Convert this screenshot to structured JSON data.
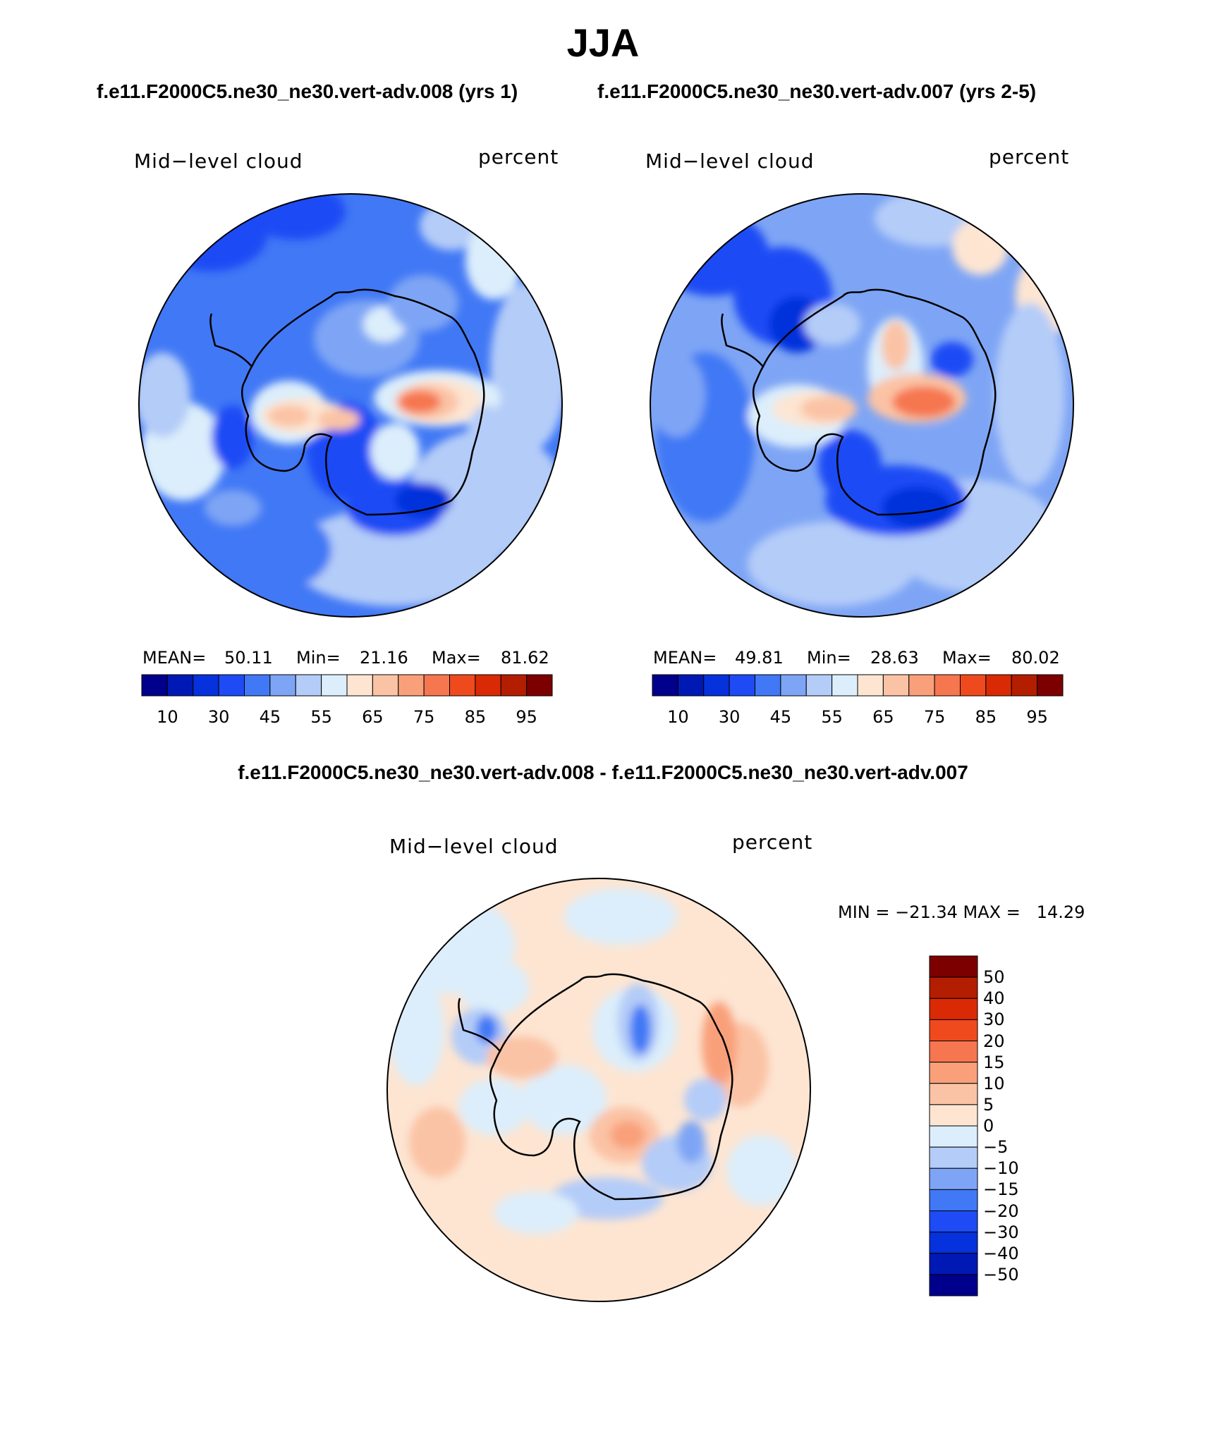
{
  "title": "JJA",
  "case_titles": {
    "left": "f.e11.F2000C5.ne30_ne30.vert-adv.008 (yrs 1)",
    "right": "f.e11.F2000C5.ne30_ne30.vert-adv.007 (yrs 2-5)"
  },
  "diff_title": "f.e11.F2000C5.ne30_ne30.vert-adv.008 - f.e11.F2000C5.ne30_ne30.vert-adv.007",
  "panels": {
    "left": {
      "variable": "Mid−level cloud",
      "units": "percent",
      "mean_label": "MEAN=",
      "mean_value": "50.11",
      "min_label": "Min=",
      "min_value": "21.16",
      "max_label": "Max=",
      "max_value": "81.62"
    },
    "right": {
      "variable": "Mid−level cloud",
      "units": "percent",
      "mean_label": "MEAN=",
      "mean_value": "49.81",
      "min_label": "Min=",
      "min_value": "28.63",
      "max_label": "Max=",
      "max_value": "80.02"
    },
    "diff": {
      "variable": "Mid−level cloud",
      "units": "percent",
      "minmax_text": "MIN = −21.34 MAX =   14.29"
    }
  },
  "colorbar_abs": {
    "ticks": [
      "10",
      "30",
      "45",
      "55",
      "65",
      "75",
      "85",
      "95"
    ],
    "colors": [
      "#00008c",
      "#0019b4",
      "#0532dc",
      "#1e4bf5",
      "#4178f5",
      "#7ea5f5",
      "#b4ccf8",
      "#dceefb",
      "#fde5d2",
      "#fbc3a5",
      "#f9a07a",
      "#f6764f",
      "#ef4a1e",
      "#d92a05",
      "#b41e00",
      "#7d0000"
    ]
  },
  "colorbar_diff": {
    "labels": [
      "50",
      "40",
      "30",
      "20",
      "15",
      "10",
      "5",
      "0",
      "−5",
      "−10",
      "−15",
      "−20",
      "−30",
      "−40",
      "−50"
    ],
    "colors": [
      "#7d0000",
      "#b41e00",
      "#d92a05",
      "#ef4a1e",
      "#f6764f",
      "#f9a07a",
      "#fbc3a5",
      "#fde5d2",
      "#dceefb",
      "#b4ccf8",
      "#7ea5f5",
      "#4178f5",
      "#1e4bf5",
      "#0532dc",
      "#0019b4",
      "#00008c"
    ]
  }
}
